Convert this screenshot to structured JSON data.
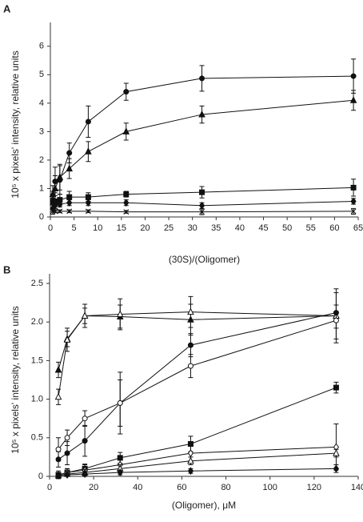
{
  "chart_data": [
    {
      "type": "line",
      "panel_label": "A",
      "ylabel": "10⁵ x pixels' intensity, relative units",
      "xlabel": "(30S)/(Oligomer)",
      "x": [
        0.5,
        1,
        2,
        4,
        8,
        16,
        32,
        64
      ],
      "xlim": [
        0,
        65
      ],
      "xticks": [
        0,
        5,
        10,
        15,
        20,
        25,
        30,
        35,
        40,
        45,
        50,
        55,
        60,
        65
      ],
      "ylim": [
        0,
        6.5
      ],
      "yticks": [
        0,
        1,
        2,
        3,
        4,
        5,
        6
      ],
      "color": "#111111",
      "series": [
        {
          "marker": "circle",
          "filled": true,
          "values": [
            0.6,
            1.25,
            1.3,
            2.25,
            3.35,
            4.4,
            4.87,
            4.95
          ],
          "errors": [
            0.3,
            0.5,
            0.5,
            0.35,
            0.55,
            0.3,
            0.45,
            0.6
          ]
        },
        {
          "marker": "triangle",
          "filled": true,
          "values": [
            0.8,
            1.0,
            1.4,
            1.7,
            2.3,
            3.0,
            3.6,
            4.1
          ],
          "errors": [
            0.3,
            0.45,
            0.45,
            0.35,
            0.35,
            0.3,
            0.3,
            0.35
          ]
        },
        {
          "marker": "square",
          "filled": true,
          "values": [
            0.5,
            0.55,
            0.6,
            0.7,
            0.7,
            0.8,
            0.87,
            1.03
          ],
          "errors": [
            0.3,
            0.3,
            0.2,
            0.2,
            0.15,
            0.1,
            0.2,
            0.3
          ]
        },
        {
          "marker": "diamond",
          "filled": true,
          "values": [
            0.3,
            0.4,
            0.45,
            0.5,
            0.5,
            0.5,
            0.4,
            0.55
          ],
          "errors": [
            0.2,
            0.1,
            0.1,
            0.1,
            0.1,
            0.1,
            0.1,
            0.1
          ]
        },
        {
          "marker": "x",
          "filled": true,
          "values": [
            0.2,
            0.2,
            0.2,
            0.2,
            0.2,
            0.18,
            0.18,
            0.2
          ],
          "errors": [
            0.1,
            0.05,
            0.05,
            0.05,
            0.05,
            0.05,
            0.1,
            0.1
          ]
        }
      ]
    },
    {
      "type": "line",
      "panel_label": "B",
      "ylabel": "10⁵ x pixels' intensity, relative units",
      "xlabel": "(Oligomer), μM",
      "x": [
        4,
        8,
        16,
        32,
        64,
        130
      ],
      "xlim": [
        0,
        140
      ],
      "xticks": [
        0,
        20,
        40,
        60,
        80,
        100,
        120,
        140
      ],
      "ylim": [
        0,
        2.5
      ],
      "yticks": [
        0,
        0.5,
        {
          "value": 1,
          "label": "1.0"
        },
        1.5,
        {
          "value": 2,
          "label": "2.0"
        },
        2.5
      ],
      "color": "#111111",
      "series": [
        {
          "marker": "triangle",
          "filled": true,
          "values": [
            1.38,
            1.78,
            2.08,
            2.07,
            2.03,
            2.08
          ],
          "errors": [
            0.1,
            0.1,
            0.15,
            0.15,
            0.2,
            0.35
          ]
        },
        {
          "marker": "triangle",
          "filled": false,
          "values": [
            1.03,
            1.77,
            2.08,
            2.1,
            2.13,
            2.08
          ],
          "errors": [
            0.1,
            0.15,
            0.1,
            0.2,
            0.2,
            0.3
          ]
        },
        {
          "marker": "circle",
          "filled": true,
          "values": [
            0.22,
            0.3,
            0.46,
            0.95,
            1.7,
            2.12
          ],
          "errors": [
            0.1,
            0.15,
            0.2,
            0.4,
            0.15,
            0.1
          ]
        },
        {
          "marker": "circle",
          "filled": false,
          "values": [
            0.35,
            0.5,
            0.75,
            0.95,
            1.43,
            2.02
          ],
          "errors": [
            0.15,
            0.1,
            0.1,
            0.3,
            0.15,
            0.1
          ]
        },
        {
          "marker": "square",
          "filled": true,
          "values": [
            0.02,
            0.05,
            0.1,
            0.24,
            0.42,
            1.15
          ],
          "errors": [
            0.05,
            0.05,
            0.05,
            0.07,
            0.1,
            0.07
          ]
        },
        {
          "marker": "diamond",
          "filled": false,
          "values": [
            0.02,
            0.05,
            0.08,
            0.15,
            0.3,
            0.38
          ],
          "errors": [
            0.03,
            0.05,
            0.08,
            0.1,
            0.1,
            0.3
          ]
        },
        {
          "marker": "triangle",
          "filled": false,
          "values": [
            0.01,
            0.03,
            0.05,
            0.1,
            0.2,
            0.3
          ],
          "errors": [
            0.02,
            0.03,
            0.04,
            0.05,
            0.05,
            0.05
          ]
        },
        {
          "marker": "diamond",
          "filled": true,
          "values": [
            0.01,
            0.02,
            0.03,
            0.05,
            0.07,
            0.1
          ],
          "errors": [
            0.02,
            0.02,
            0.02,
            0.03,
            0.03,
            0.05
          ]
        }
      ]
    }
  ]
}
